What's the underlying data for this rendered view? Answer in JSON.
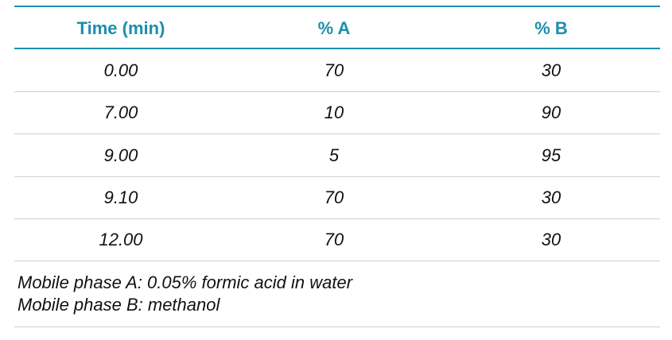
{
  "table": {
    "header": [
      "Time (min)",
      "% A",
      "% B"
    ],
    "rows": [
      [
        "0.00",
        "70",
        "30"
      ],
      [
        "7.00",
        "10",
        "90"
      ],
      [
        "9.00",
        "5",
        "95"
      ],
      [
        "9.10",
        "70",
        "30"
      ],
      [
        "12.00",
        "70",
        "30"
      ]
    ]
  },
  "notes": [
    "Mobile phase A: 0.05% formic acid in water",
    "Mobile phase B: methanol"
  ]
}
